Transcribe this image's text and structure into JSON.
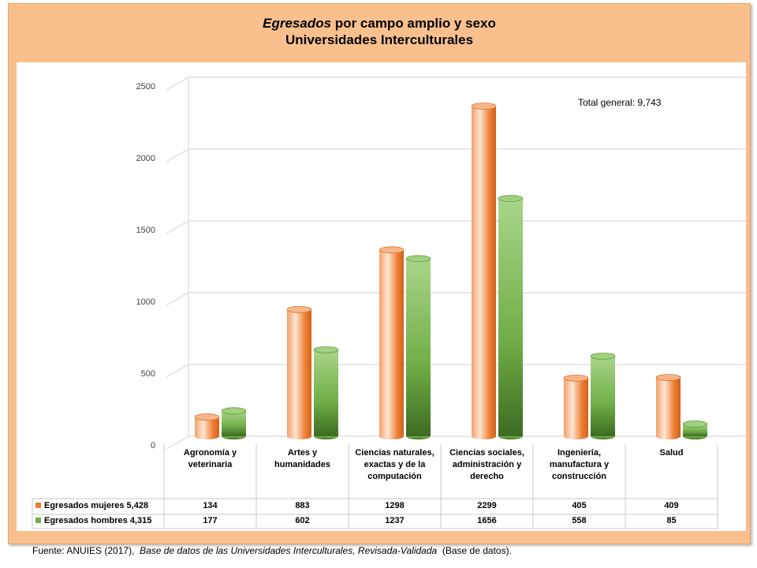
{
  "chart_data": {
    "type": "bar",
    "title": [
      "Egresados",
      "por campo amplio y sexo"
    ],
    "subtitle": "Universidades Interculturales",
    "annotation": "Total general: 9,743",
    "categories": [
      "Agronomía y veterinaria",
      "Artes y humanidades",
      "Ciencias naturales, exactas y de la computación",
      "Ciencias sociales, administración y derecho",
      "Ingeniería, manufactura y construcción",
      "Salud"
    ],
    "series": [
      {
        "name": "Egresados mujeres 5,428",
        "color": "#ed7d31",
        "values": [
          134,
          883,
          1298,
          2299,
          405,
          409
        ]
      },
      {
        "name": "Egresados hombres 4,315",
        "color": "#70ad47",
        "values": [
          177,
          602,
          1237,
          1656,
          558,
          85
        ]
      }
    ],
    "ylim": [
      0,
      2500
    ],
    "yticks": [
      0,
      500,
      1000,
      1500,
      2000,
      2500
    ],
    "grid": true,
    "source": [
      "Fuente: ANUIES (2017),",
      "Base de datos de las Universidades  Interculturales, Revisada-Validada",
      "(Base de datos)."
    ]
  }
}
